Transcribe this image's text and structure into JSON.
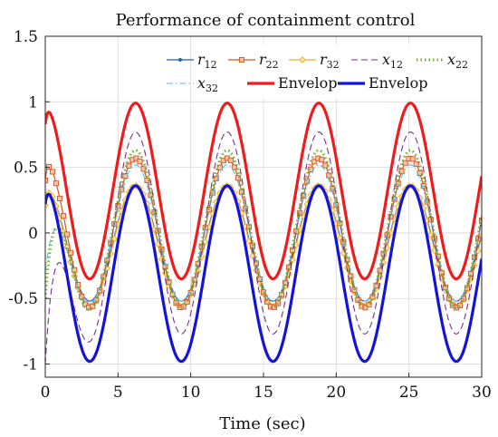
{
  "chart_data": {
    "type": "line",
    "title": "Performance of containment control",
    "xlabel": "Time (sec)",
    "ylabel": "",
    "xlim": [
      0,
      30
    ],
    "ylim": [
      -1.1,
      1.5
    ],
    "xticks": [
      "0",
      "5",
      "10",
      "15",
      "20",
      "25",
      "30"
    ],
    "yticks": [
      "1.5",
      "1",
      "0.5",
      "0",
      "-0.5",
      "-1"
    ],
    "grid": true,
    "legend_position": "top-right",
    "series": [
      {
        "name": "r_12",
        "label_base": "r",
        "label_sub": "12",
        "color": "#1f5fbf",
        "style": "solid-dot",
        "shape": {
          "kind": "sine",
          "offset": -0.08,
          "amp": 0.44,
          "freq": 1.0,
          "phase": 0.53,
          "start": 0.22
        }
      },
      {
        "name": "r_22",
        "label_base": "r",
        "label_sub": "22",
        "color": "#d9541e",
        "style": "solid-square",
        "shape": {
          "kind": "sine",
          "offset": 0.0,
          "amp": 0.57,
          "freq": 1.0,
          "phase": 0.53,
          "start": 0.4
        }
      },
      {
        "name": "r_32",
        "label_base": "r",
        "label_sub": "32",
        "color": "#edb120",
        "style": "solid-diamond",
        "shape": {
          "kind": "sine",
          "offset": -0.1,
          "amp": 0.46,
          "freq": 1.0,
          "phase": 0.53,
          "start": 0.21
        }
      },
      {
        "name": "x_12",
        "label_base": "x",
        "label_sub": "12",
        "color": "#7e2f8e",
        "style": "dashed",
        "shape": {
          "kind": "sine",
          "offset": 0.0,
          "amp": 0.77,
          "freq": 1.0,
          "phase": 0.53,
          "start": -1.0,
          "decay": 0.9
        }
      },
      {
        "name": "x_22",
        "label_base": "x",
        "label_sub": "22",
        "color": "#77ac30",
        "style": "dotted",
        "shape": {
          "kind": "sine",
          "offset": 0.03,
          "amp": 0.6,
          "freq": 1.0,
          "phase": 0.53,
          "start": -0.5,
          "decay": 0.7
        }
      },
      {
        "name": "x_32",
        "label_base": "x",
        "label_sub": "32",
        "color": "#4dbeee",
        "style": "dashdot",
        "shape": {
          "kind": "sine",
          "offset": 0.0,
          "amp": 0.52,
          "freq": 1.0,
          "phase": 0.53,
          "start": -0.3,
          "decay": 0.8
        }
      },
      {
        "name": "Envelop",
        "label_base": "Envelop",
        "label_sub": "",
        "color": "#ee1c1c",
        "style": "thick",
        "shape": {
          "kind": "sine",
          "offset": 0.32,
          "amp": 0.67,
          "freq": 1.0,
          "phase": 0.53,
          "start": 0.83
        }
      },
      {
        "name": "Envelop",
        "label_base": "Envelop",
        "label_sub": "",
        "color": "#1414d8",
        "style": "thick",
        "shape": {
          "kind": "sine",
          "offset": -0.31,
          "amp": 0.67,
          "freq": 1.0,
          "phase": 0.53,
          "start": 0.22
        }
      }
    ]
  }
}
